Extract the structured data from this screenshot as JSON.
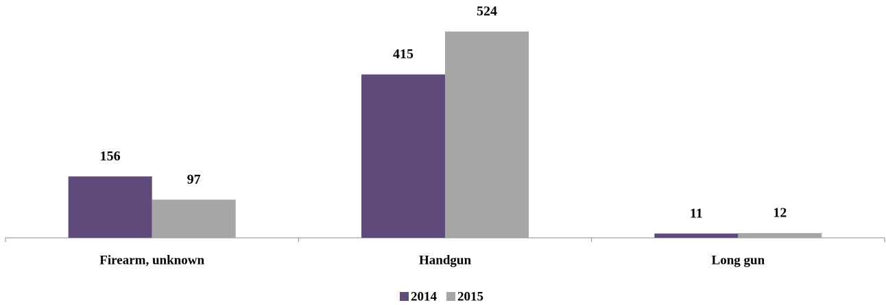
{
  "chart_data": {
    "type": "bar",
    "categories": [
      "Firearm, unknown",
      "Handgun",
      "Long gun"
    ],
    "series": [
      {
        "name": "2014",
        "color": "#604a7b",
        "values": [
          156,
          415,
          11
        ]
      },
      {
        "name": "2015",
        "color": "#a6a6a6",
        "values": [
          97,
          524,
          12
        ]
      }
    ],
    "legend": "bottom"
  }
}
